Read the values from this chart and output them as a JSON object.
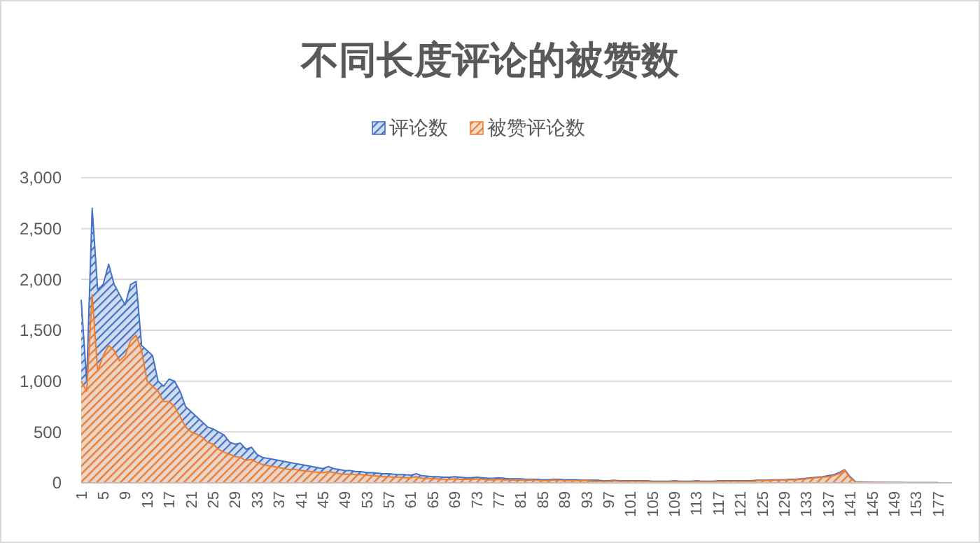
{
  "chart_data": {
    "type": "area",
    "title": "不同长度评论的被赞数",
    "categories": [
      "1",
      null,
      null,
      null,
      "5",
      null,
      null,
      null,
      "9",
      null,
      null,
      null,
      "13",
      null,
      null,
      null,
      "17",
      null,
      null,
      null,
      "21",
      null,
      null,
      null,
      "25",
      null,
      null,
      null,
      "29",
      null,
      null,
      null,
      "33",
      null,
      null,
      null,
      "37",
      null,
      null,
      null,
      "41",
      null,
      null,
      null,
      "45",
      null,
      null,
      null,
      "49",
      null,
      null,
      null,
      "53",
      null,
      null,
      null,
      "57",
      null,
      null,
      null,
      "61",
      null,
      null,
      null,
      "65",
      null,
      null,
      null,
      "69",
      null,
      null,
      null,
      "73",
      null,
      null,
      null,
      "77",
      null,
      null,
      null,
      "81",
      null,
      null,
      null,
      "85",
      null,
      null,
      null,
      "89",
      null,
      null,
      null,
      "93",
      null,
      null,
      null,
      "97",
      null,
      null,
      null,
      "101",
      null,
      null,
      null,
      "105",
      null,
      null,
      null,
      "109",
      null,
      null,
      null,
      "113",
      null,
      null,
      null,
      "117",
      null,
      null,
      null,
      "121",
      null,
      null,
      null,
      "125",
      null,
      null,
      null,
      "129",
      null,
      null,
      null,
      "133",
      null,
      null,
      null,
      "137",
      null,
      null,
      null,
      "141",
      null,
      null,
      null,
      "145",
      null,
      null,
      null,
      "149",
      null,
      null,
      null,
      "153",
      null,
      null,
      null,
      "177"
    ],
    "series": [
      {
        "name": "评论数",
        "color": "#4472c4",
        "values": [
          1800,
          1000,
          2700,
          1900,
          1950,
          2150,
          1950,
          1850,
          1750,
          1950,
          1980,
          1350,
          1300,
          1250,
          1000,
          950,
          1020,
          1000,
          900,
          750,
          700,
          650,
          600,
          550,
          530,
          500,
          470,
          400,
          380,
          390,
          330,
          350,
          280,
          250,
          240,
          230,
          220,
          210,
          200,
          190,
          180,
          170,
          160,
          150,
          140,
          160,
          140,
          130,
          120,
          120,
          110,
          110,
          100,
          100,
          95,
          90,
          90,
          85,
          80,
          80,
          75,
          90,
          70,
          65,
          60,
          60,
          55,
          55,
          60,
          55,
          50,
          50,
          55,
          50,
          45,
          45,
          50,
          45,
          40,
          40,
          40,
          35,
          35,
          35,
          30,
          30,
          35,
          35,
          30,
          30,
          30,
          25,
          25,
          25,
          25,
          20,
          20,
          25,
          20,
          20,
          20,
          20,
          20,
          20,
          15,
          15,
          15,
          15,
          20,
          15,
          15,
          15,
          20,
          15,
          15,
          15,
          20,
          20,
          20,
          20,
          20,
          20,
          20,
          25,
          25,
          25,
          30,
          30,
          30,
          35,
          35,
          40,
          45,
          50,
          55,
          60,
          70,
          80,
          100,
          130,
          60,
          10,
          8,
          5,
          5,
          4,
          4,
          3,
          3,
          3,
          2,
          2,
          2,
          1,
          1,
          1,
          1
        ]
      },
      {
        "name": "被赞评论数",
        "color": "#ed7d31",
        "values": [
          1000,
          900,
          1850,
          1100,
          1250,
          1350,
          1300,
          1200,
          1250,
          1400,
          1450,
          1300,
          1000,
          950,
          900,
          800,
          800,
          750,
          650,
          550,
          500,
          480,
          450,
          400,
          380,
          330,
          300,
          280,
          260,
          250,
          220,
          230,
          200,
          180,
          170,
          160,
          150,
          140,
          130,
          130,
          120,
          115,
          110,
          105,
          100,
          110,
          100,
          90,
          85,
          85,
          80,
          80,
          75,
          70,
          65,
          60,
          60,
          55,
          55,
          50,
          50,
          60,
          45,
          45,
          40,
          40,
          35,
          35,
          40,
          35,
          35,
          35,
          40,
          35,
          30,
          30,
          35,
          30,
          30,
          25,
          25,
          25,
          25,
          25,
          20,
          20,
          25,
          25,
          20,
          20,
          20,
          20,
          20,
          15,
          15,
          15,
          15,
          20,
          15,
          15,
          15,
          15,
          15,
          15,
          10,
          10,
          10,
          10,
          15,
          10,
          10,
          10,
          15,
          10,
          10,
          10,
          15,
          15,
          15,
          15,
          15,
          15,
          15,
          20,
          20,
          20,
          25,
          25,
          25,
          30,
          30,
          35,
          40,
          45,
          50,
          55,
          60,
          70,
          90,
          125,
          50,
          8,
          6,
          4,
          4,
          3,
          3,
          2,
          2,
          2,
          2,
          1,
          1,
          1,
          1,
          1,
          1
        ]
      }
    ],
    "ylim": [
      0,
      3000
    ],
    "yticks": [
      0,
      500,
      {
        "value": 1000,
        "label": "1,000"
      },
      {
        "value": 1500,
        "label": "1,500"
      },
      {
        "value": 2000,
        "label": "2,000"
      },
      {
        "value": 2500,
        "label": "2,500"
      },
      {
        "value": 3000,
        "label": "3,000"
      }
    ],
    "grid": "y",
    "legend": "top"
  }
}
